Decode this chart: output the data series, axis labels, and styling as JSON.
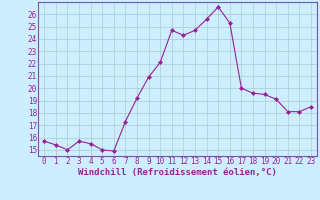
{
  "x": [
    0,
    1,
    2,
    3,
    4,
    5,
    6,
    7,
    8,
    9,
    10,
    11,
    12,
    13,
    14,
    15,
    16,
    17,
    18,
    19,
    20,
    21,
    22,
    23
  ],
  "y": [
    15.7,
    15.4,
    15.0,
    15.7,
    15.5,
    15.0,
    14.9,
    17.3,
    19.2,
    20.9,
    22.1,
    24.7,
    24.3,
    24.7,
    25.6,
    26.6,
    25.3,
    20.0,
    19.6,
    19.5,
    19.1,
    18.1,
    18.1,
    18.5
  ],
  "line_color": "#992299",
  "marker_color": "#992299",
  "bg_color": "#cceeff",
  "grid_color": "#aacccc",
  "xlabel": "Windchill (Refroidissement éolien,°C)",
  "ylim": [
    14.5,
    27.0
  ],
  "yticks": [
    15,
    16,
    17,
    18,
    19,
    20,
    21,
    22,
    23,
    24,
    25,
    26
  ],
  "xlim": [
    -0.5,
    23.5
  ],
  "xticks": [
    0,
    1,
    2,
    3,
    4,
    5,
    6,
    7,
    8,
    9,
    10,
    11,
    12,
    13,
    14,
    15,
    16,
    17,
    18,
    19,
    20,
    21,
    22,
    23
  ],
  "label_fontsize": 6.5,
  "tick_fontsize": 5.5,
  "spine_color": "#7755aa"
}
